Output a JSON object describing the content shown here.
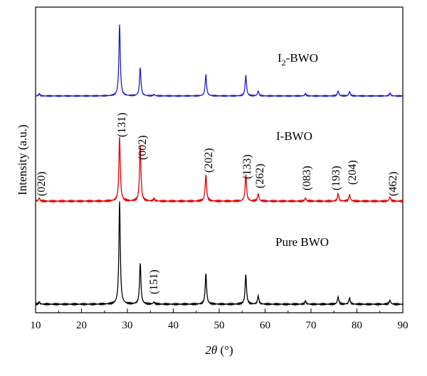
{
  "chart_data": {
    "type": "line",
    "xlabel": {
      "italic": "2θ",
      "rest": " (°)"
    },
    "ylabel": "Intensity (a.u.)",
    "xlim": [
      10,
      90
    ],
    "xticks": [
      10,
      20,
      30,
      40,
      50,
      60,
      70,
      80,
      90
    ],
    "grid": false,
    "series": [
      {
        "name": "I2-BWO",
        "label_main": "I",
        "label_sub": "2",
        "label_rest": "-BWO",
        "color": "#1f1fbf",
        "peaks": [
          {
            "x": 10.8,
            "y": 0.03
          },
          {
            "x": 28.3,
            "y": 1.0
          },
          {
            "x": 32.8,
            "y": 0.4
          },
          {
            "x": 35.8,
            "y": 0.02
          },
          {
            "x": 47.1,
            "y": 0.3
          },
          {
            "x": 55.8,
            "y": 0.29
          },
          {
            "x": 58.5,
            "y": 0.07
          },
          {
            "x": 68.8,
            "y": 0.03
          },
          {
            "x": 75.9,
            "y": 0.07
          },
          {
            "x": 78.4,
            "y": 0.06
          },
          {
            "x": 87.2,
            "y": 0.04
          }
        ]
      },
      {
        "name": "I-BWO",
        "label_main": "I-BWO",
        "color": "#e00000",
        "peaks": [
          {
            "x": 10.8,
            "y": 0.03
          },
          {
            "x": 28.3,
            "y": 0.6
          },
          {
            "x": 32.8,
            "y": 0.52
          },
          {
            "x": 35.8,
            "y": 0.02
          },
          {
            "x": 47.1,
            "y": 0.25
          },
          {
            "x": 55.8,
            "y": 0.25
          },
          {
            "x": 58.5,
            "y": 0.07
          },
          {
            "x": 68.8,
            "y": 0.03
          },
          {
            "x": 75.9,
            "y": 0.07
          },
          {
            "x": 78.4,
            "y": 0.06
          },
          {
            "x": 87.2,
            "y": 0.04
          }
        ]
      },
      {
        "name": "Pure BWO",
        "label_main": "Pure BWO",
        "color": "#000000",
        "peaks": [
          {
            "x": 10.8,
            "y": 0.02
          },
          {
            "x": 28.3,
            "y": 1.0
          },
          {
            "x": 32.8,
            "y": 0.4
          },
          {
            "x": 35.8,
            "y": 0.02
          },
          {
            "x": 47.1,
            "y": 0.3
          },
          {
            "x": 55.8,
            "y": 0.29
          },
          {
            "x": 58.5,
            "y": 0.08
          },
          {
            "x": 68.8,
            "y": 0.03
          },
          {
            "x": 75.9,
            "y": 0.07
          },
          {
            "x": 78.4,
            "y": 0.06
          },
          {
            "x": 87.2,
            "y": 0.04
          }
        ]
      }
    ],
    "annotations": [
      {
        "text": "(020)",
        "x": 10.8
      },
      {
        "text": "(131)",
        "x": 28.3
      },
      {
        "text": "(002)",
        "x": 32.8
      },
      {
        "text": "(202)",
        "x": 47.1
      },
      {
        "text": "(133)",
        "x": 55.8
      },
      {
        "text": "(262)",
        "x": 58.5
      },
      {
        "text": "(083)",
        "x": 68.8
      },
      {
        "text": "(193)",
        "x": 75.9
      },
      {
        "text": "(204)",
        "x": 78.4
      },
      {
        "text": "(462)",
        "x": 87.2
      },
      {
        "text": "(151)",
        "x": 35.8
      }
    ]
  }
}
